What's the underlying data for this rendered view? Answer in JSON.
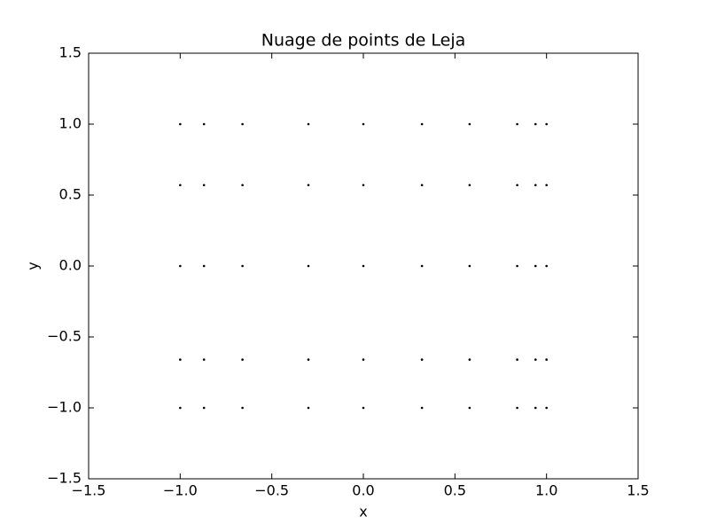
{
  "chart_data": {
    "type": "scatter",
    "title": "Nuage de points de Leja",
    "xlabel": "x",
    "ylabel": "y",
    "color": "#000000",
    "x": [
      -1,
      -0.87,
      -0.66,
      -0.3,
      0,
      0.32,
      0.58,
      0.84,
      0.94,
      1,
      -1,
      -0.87,
      -0.66,
      -0.3,
      0,
      0.32,
      0.58,
      0.84,
      0.94,
      1,
      -1,
      -0.87,
      -0.66,
      -0.3,
      0,
      0.32,
      0.58,
      0.84,
      0.94,
      1,
      -1,
      -0.87,
      -0.66,
      -0.3,
      0,
      0.32,
      0.58,
      0.84,
      0.94,
      1,
      -1,
      -0.87,
      -0.66,
      -0.3,
      0,
      0.32,
      0.58,
      0.84,
      0.94,
      1
    ],
    "values": [
      1,
      1,
      1,
      1,
      1,
      1,
      1,
      1,
      1,
      1,
      0.57,
      0.57,
      0.57,
      0.57,
      0.57,
      0.57,
      0.57,
      0.57,
      0.57,
      0.57,
      0,
      0,
      0,
      0,
      0,
      0,
      0,
      0,
      0,
      0,
      -0.66,
      -0.66,
      -0.66,
      -0.66,
      -0.66,
      -0.66,
      -0.66,
      -0.66,
      -0.66,
      -0.66,
      -1,
      -1,
      -1,
      -1,
      -1,
      -1,
      -1,
      -1,
      -1,
      -1
    ],
    "xlim": [
      -1.5,
      1.5
    ],
    "ylim": [
      -1.5,
      1.5
    ],
    "xticks": [
      {
        "value": -1.5,
        "label": "−1.5"
      },
      {
        "value": -1,
        "label": "−1.0"
      },
      {
        "value": -0.5,
        "label": "−0.5"
      },
      {
        "value": 0,
        "label": "0.0"
      },
      0.5,
      {
        "value": 1,
        "label": "1.0"
      },
      1.5
    ],
    "yticks": [
      {
        "value": -1.5,
        "label": "−1.5"
      },
      {
        "value": -1,
        "label": "−1.0"
      },
      {
        "value": -0.5,
        "label": "−0.5"
      },
      {
        "value": 0,
        "label": "0.0"
      },
      0.5,
      {
        "value": 1,
        "label": "1.0"
      },
      1.5
    ],
    "grid": false
  }
}
